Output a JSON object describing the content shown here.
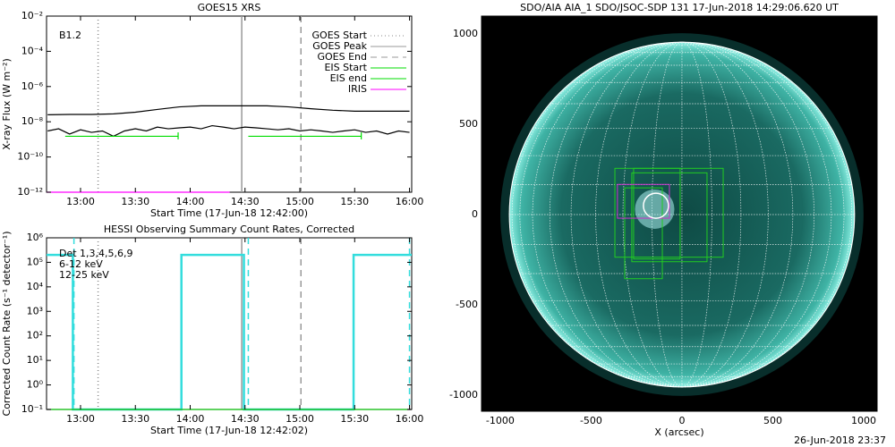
{
  "chart_data": [
    {
      "type": "line",
      "title": "GOES15 XRS",
      "annotation": "B1.2",
      "xlabel": "Start Time (17-Jun-18 12:42:00)",
      "ylabel": "X-ray Flux (W m⁻²)",
      "log_y": true,
      "legend": "top-right",
      "xlim": [
        12.69,
        16.02
      ],
      "xticks": [
        {
          "value": 13,
          "label": "13:00"
        },
        {
          "value": 13.5,
          "label": "13:30"
        },
        {
          "value": 14,
          "label": "14:00"
        },
        {
          "value": 14.5,
          "label": "14:30"
        },
        {
          "value": 15,
          "label": "15:00"
        },
        {
          "value": 15.5,
          "label": "15:30"
        },
        {
          "value": 16,
          "label": "16:00"
        }
      ],
      "ylim": [
        1e-12,
        0.01
      ],
      "yticks": [
        {
          "value": 1e-12,
          "label": "10⁻¹²"
        },
        {
          "value": 1e-10,
          "label": "10⁻¹⁰"
        },
        {
          "value": 1e-08,
          "label": "10⁻⁸"
        },
        {
          "value": 1e-06,
          "label": "10⁻⁶"
        },
        {
          "value": 0.0001,
          "label": "10⁻⁴"
        },
        {
          "value": 0.01,
          "label": "10⁻²"
        }
      ],
      "vlines": [
        {
          "name": "GOES Start",
          "value": 13.16,
          "color": "#888888",
          "dash": "1,3"
        },
        {
          "name": "GOES Peak",
          "value": 14.47,
          "color": "#999999",
          "dash": "none"
        },
        {
          "name": "GOES End",
          "value": 15.01,
          "color": "#999999",
          "dash": "7,5"
        }
      ],
      "series": [
        {
          "color": "#000000",
          "x": [
            12.7,
            12.9,
            13.1,
            13.3,
            13.5,
            13.7,
            13.9,
            14.1,
            14.3,
            14.5,
            14.7,
            14.9,
            15.1,
            15.3,
            15.5,
            15.7,
            15.9,
            16.0
          ],
          "values": [
            2.5e-08,
            2.6e-08,
            2.6e-08,
            2.8e-08,
            3.5e-08,
            5e-08,
            7e-08,
            8e-08,
            8e-08,
            8e-08,
            8e-08,
            7e-08,
            5.5e-08,
            4.5e-08,
            4e-08,
            4e-08,
            4e-08,
            4e-08
          ]
        },
        {
          "color": "#000000",
          "x": [
            12.7,
            12.8,
            12.9,
            13.0,
            13.1,
            13.2,
            13.3,
            13.4,
            13.5,
            13.6,
            13.7,
            13.8,
            13.9,
            14.0,
            14.1,
            14.2,
            14.3,
            14.4,
            14.5,
            14.6,
            14.7,
            14.8,
            14.9,
            15.0,
            15.1,
            15.2,
            15.3,
            15.4,
            15.5,
            15.6,
            15.7,
            15.8,
            15.9,
            16.0
          ],
          "values": [
            3e-09,
            4e-09,
            2e-09,
            3.5e-09,
            2.5e-09,
            3e-09,
            1.5e-09,
            3e-09,
            4e-09,
            3e-09,
            5e-09,
            4e-09,
            4.5e-09,
            5e-09,
            4e-09,
            6e-09,
            5e-09,
            4e-09,
            5e-09,
            4.5e-09,
            4e-09,
            3.5e-09,
            4e-09,
            3e-09,
            3.5e-09,
            3e-09,
            2.5e-09,
            3e-09,
            3.5e-09,
            2.5e-09,
            3e-09,
            2e-09,
            3e-09,
            2.5e-09
          ]
        },
        {
          "name": "EIS Start",
          "color": "#00dd00",
          "x": [
            12.86,
            13.89,
            null,
            14.53,
            15.56
          ],
          "values": [
            1.5e-09,
            1.5e-09,
            null,
            1.5e-09,
            1.5e-09
          ]
        },
        {
          "name": "EIS end",
          "color": "#00dd00",
          "x": [
            13.89,
            13.89,
            null,
            15.56,
            15.56
          ],
          "values": [
            1e-09,
            2.5e-09,
            null,
            1e-09,
            2.5e-09
          ]
        },
        {
          "name": "IRIS",
          "color": "#ff00ff",
          "x": [
            12.69,
            14.36
          ],
          "values": [
            1e-12,
            1e-12
          ]
        }
      ]
    },
    {
      "type": "line",
      "title": "HESSI Observing Summary Count Rates, Corrected",
      "xlabel": "Start Time (17-Jun-18 12:42:02)",
      "ylabel": "Corrected Count Rate (s⁻¹ detector⁻¹)",
      "log_y": true,
      "legend": "top-left",
      "xlim": [
        12.69,
        16.02
      ],
      "xticks": [
        {
          "value": 13,
          "label": "13:00"
        },
        {
          "value": 13.5,
          "label": "13:30"
        },
        {
          "value": 14,
          "label": "14:00"
        },
        {
          "value": 14.5,
          "label": "14:30"
        },
        {
          "value": 15,
          "label": "15:00"
        },
        {
          "value": 15.5,
          "label": "15:30"
        },
        {
          "value": 16,
          "label": "16:00"
        }
      ],
      "ylim": [
        0.1,
        1000000
      ],
      "yticks": [
        {
          "value": 0.1,
          "label": "10⁻¹"
        },
        {
          "value": 1,
          "label": "10⁰"
        },
        {
          "value": 10,
          "label": "10¹"
        },
        {
          "value": 100,
          "label": "10²"
        },
        {
          "value": 1000,
          "label": "10³"
        },
        {
          "value": 10000,
          "label": "10⁴"
        },
        {
          "value": 100000,
          "label": "10⁵"
        },
        {
          "value": 1000000,
          "label": "10⁶"
        }
      ],
      "vlines": [
        {
          "value": 13.16,
          "color": "#888888",
          "dash": "1,3"
        },
        {
          "value": 14.47,
          "color": "#999999",
          "dash": "none"
        },
        {
          "value": 15.01,
          "color": "#999999",
          "dash": "7,5"
        },
        {
          "value": 12.94,
          "color": "#33dddd",
          "dash": "7,5"
        },
        {
          "value": 14.53,
          "color": "#33dddd",
          "dash": "7,5"
        },
        {
          "value": 16.0,
          "color": "#33dddd",
          "dash": "7,5"
        }
      ],
      "series": [
        {
          "name": "Det 1,3,4,5,6,9",
          "color": "#33dddd",
          "label_color": "#000000",
          "x": [
            12.69,
            12.93,
            12.93,
            13.92,
            13.92,
            14.49,
            14.49,
            15.49,
            15.49,
            16.02
          ],
          "values": [
            200000,
            200000,
            0.1,
            0.1,
            200000,
            200000,
            0.1,
            0.1,
            200000,
            200000
          ]
        },
        {
          "name": "6-12 keV",
          "color": "#ff00ff",
          "x": [
            12.69,
            16.02
          ],
          "values": [
            0.1,
            0.1
          ]
        },
        {
          "name": "12-25 keV",
          "color": "#00dd00",
          "x": [
            12.69,
            16.02
          ],
          "values": [
            0.1,
            0.1
          ]
        }
      ]
    },
    {
      "type": "image",
      "title": "SDO/AIA AIA_1 SDO/JSOC-SDP 131 17-Jun-2018 14:29:06.620 UT",
      "xlabel": "X (arcsec)",
      "xlim": [
        -1103,
        1074
      ],
      "xticks": [
        -1000,
        -500,
        0,
        500,
        1000
      ],
      "ylim": [
        -1089,
        1099
      ],
      "yticks": [
        -1000,
        -500,
        0,
        500,
        1000
      ],
      "flare_location": {
        "label": "O AIA flare location",
        "x": -143,
        "y": 49
      },
      "eis_fov": {
        "label": "EIS FOV",
        "color": "#22cc22",
        "boxes": [
          [
            -369,
            -236,
            227,
            256
          ],
          [
            -266,
            -246,
            -10,
            256
          ],
          [
            -315,
            -355,
            -108,
            148
          ],
          [
            -276,
            -261,
            138,
            231
          ]
        ]
      },
      "iris_fov": {
        "label": "IRIS FOV",
        "color": "#cc33cc",
        "boxes": [
          [
            -355,
            -20,
            -69,
            167
          ]
        ]
      }
    }
  ],
  "footer": "26-Jun-2018 23:37"
}
